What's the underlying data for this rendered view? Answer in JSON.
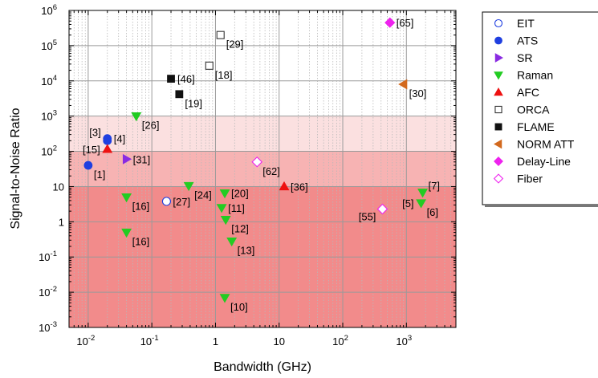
{
  "chart_data": {
    "type": "scatter",
    "xlabel": "Bandwidth (GHz)",
    "ylabel": "Signal-to-Noise Ratio",
    "x_scale": "log",
    "y_scale": "log",
    "xlim": [
      0.005,
      6000
    ],
    "ylim": [
      0.001,
      1000000
    ],
    "x_ticks": [
      {
        "value": 0.01,
        "base": "10",
        "exp": "-2"
      },
      {
        "value": 0.1,
        "base": "10",
        "exp": "-1"
      },
      {
        "value": 1,
        "base": "1",
        "exp": ""
      },
      {
        "value": 10,
        "base": "10",
        "exp": ""
      },
      {
        "value": 100,
        "base": "10",
        "exp": "2"
      },
      {
        "value": 1000,
        "base": "10",
        "exp": "3"
      }
    ],
    "y_ticks": [
      {
        "value": 0.001,
        "base": "10",
        "exp": "-3"
      },
      {
        "value": 0.01,
        "base": "10",
        "exp": "-2"
      },
      {
        "value": 0.1,
        "base": "10",
        "exp": "-1"
      },
      {
        "value": 1,
        "base": "1",
        "exp": ""
      },
      {
        "value": 10,
        "base": "10",
        "exp": ""
      },
      {
        "value": 100,
        "base": "10",
        "exp": "2"
      },
      {
        "value": 1000,
        "base": "10",
        "exp": "3"
      },
      {
        "value": 10000,
        "base": "10",
        "exp": "4"
      },
      {
        "value": 100000,
        "base": "10",
        "exp": "5"
      },
      {
        "value": 1000000,
        "base": "10",
        "exp": "6"
      }
    ],
    "grid": true,
    "legend_position": "right",
    "bands": [
      {
        "y_from": 0.001,
        "y_to": 10,
        "color": "#f28b8b"
      },
      {
        "y_from": 10,
        "y_to": 100,
        "color": "#f7b3b3"
      },
      {
        "y_from": 100,
        "y_to": 1000,
        "color": "#fbe0e0"
      }
    ],
    "series": [
      {
        "name": "EIT",
        "marker": "circle",
        "filled": false,
        "color": "#1f3fe0",
        "points": [
          {
            "x": 0.17,
            "y": 3.8,
            "label": "[27]"
          }
        ]
      },
      {
        "name": "ATS",
        "marker": "circle",
        "filled": true,
        "color": "#1f3fe0",
        "points": [
          {
            "x": 0.01,
            "y": 40,
            "label": "[1]"
          },
          {
            "x": 0.02,
            "y": 200,
            "label": "[3]"
          },
          {
            "x": 0.02,
            "y": 230,
            "label": "[4]"
          }
        ]
      },
      {
        "name": "SR",
        "marker": "triangle-right",
        "filled": true,
        "color": "#8a2be2",
        "points": [
          {
            "x": 0.04,
            "y": 60,
            "label": "[31]"
          }
        ]
      },
      {
        "name": "Raman",
        "marker": "triangle-down",
        "filled": true,
        "color": "#22cc22",
        "points": [
          {
            "x": 0.057,
            "y": 1000,
            "label": "[26]"
          },
          {
            "x": 0.04,
            "y": 5,
            "label": "[16]"
          },
          {
            "x": 0.04,
            "y": 0.5,
            "label": "[16]"
          },
          {
            "x": 0.38,
            "y": 10.5,
            "label": "[24]"
          },
          {
            "x": 1.4,
            "y": 6.5,
            "label": "[20]"
          },
          {
            "x": 1.25,
            "y": 2.5,
            "label": "[11]"
          },
          {
            "x": 1.45,
            "y": 1.15,
            "label": "[12]"
          },
          {
            "x": 1.8,
            "y": 0.28,
            "label": "[13]"
          },
          {
            "x": 1.4,
            "y": 0.007,
            "label": "[10]"
          },
          {
            "x": 1800,
            "y": 6.8,
            "label": "[7]"
          },
          {
            "x": 1700,
            "y": 3.4,
            "label": "[6]"
          }
        ]
      },
      {
        "name": "AFC",
        "marker": "triangle-up",
        "filled": true,
        "color": "#ee1111",
        "points": [
          {
            "x": 0.02,
            "y": 115,
            "label": "[15]"
          },
          {
            "x": 12,
            "y": 10,
            "label": "[36]"
          }
        ]
      },
      {
        "name": "ORCA",
        "marker": "square",
        "filled": false,
        "color": "#333333",
        "points": [
          {
            "x": 1.2,
            "y": 200000,
            "label": "[29]"
          },
          {
            "x": 0.8,
            "y": 27000,
            "label": "[18]"
          }
        ]
      },
      {
        "name": "FLAME",
        "marker": "square",
        "filled": true,
        "color": "#111111",
        "points": [
          {
            "x": 0.2,
            "y": 11500,
            "label": "[46]"
          },
          {
            "x": 0.27,
            "y": 4200,
            "label": "[19]"
          }
        ]
      },
      {
        "name": "NORM ATT",
        "marker": "triangle-left",
        "filled": true,
        "color": "#d2691e",
        "points": [
          {
            "x": 900,
            "y": 8000,
            "label": "[30]"
          }
        ]
      },
      {
        "name": "Delay-Line",
        "marker": "diamond",
        "filled": true,
        "color": "#ee22ee",
        "points": [
          {
            "x": 550,
            "y": 450000,
            "label": "[65]"
          }
        ]
      },
      {
        "name": "Fiber",
        "marker": "diamond",
        "filled": false,
        "color": "#ee22ee",
        "points": [
          {
            "x": 4.5,
            "y": 50,
            "label": "[62]"
          },
          {
            "x": 420,
            "y": 2.3,
            "label": "[55]"
          }
        ]
      }
    ],
    "annotations": [
      {
        "text": "[27]",
        "series": "EIT",
        "index": 0,
        "pos": "right"
      },
      {
        "text": "[1]",
        "series": "ATS",
        "index": 0,
        "pos": "below-right"
      },
      {
        "text": "[3]",
        "series": "ATS",
        "index": 1,
        "pos": "above-left"
      },
      {
        "text": "[4]",
        "series": "ATS",
        "index": 2,
        "pos": "right"
      },
      {
        "text": "[31]",
        "series": "SR",
        "index": 0,
        "pos": "right"
      },
      {
        "text": "[26]",
        "series": "Raman",
        "index": 0,
        "pos": "below-right"
      },
      {
        "text": "[16]",
        "series": "Raman",
        "index": 1,
        "pos": "below-right"
      },
      {
        "text": "[16]",
        "series": "Raman",
        "index": 2,
        "pos": "below-right"
      },
      {
        "text": "[24]",
        "series": "Raman",
        "index": 3,
        "pos": "below-right"
      },
      {
        "text": "[20]",
        "series": "Raman",
        "index": 4,
        "pos": "right"
      },
      {
        "text": "[11]",
        "series": "Raman",
        "index": 5,
        "pos": "right"
      },
      {
        "text": "[12]",
        "series": "Raman",
        "index": 6,
        "pos": "below-right"
      },
      {
        "text": "[13]",
        "series": "Raman",
        "index": 7,
        "pos": "below-right"
      },
      {
        "text": "[10]",
        "series": "Raman",
        "index": 8,
        "pos": "below-right"
      },
      {
        "text": "[7]",
        "series": "Raman",
        "index": 9,
        "pos": "above-right"
      },
      {
        "text": "[6]",
        "series": "Raman",
        "index": 10,
        "pos": "below-right"
      },
      {
        "text": "[5]",
        "series": "Raman",
        "index": 10,
        "pos": "left"
      },
      {
        "text": "[15]",
        "series": "AFC",
        "index": 0,
        "pos": "left"
      },
      {
        "text": "[36]",
        "series": "AFC",
        "index": 1,
        "pos": "right"
      },
      {
        "text": "[29]",
        "series": "ORCA",
        "index": 0,
        "pos": "below-right"
      },
      {
        "text": "[18]",
        "series": "ORCA",
        "index": 1,
        "pos": "below-right"
      },
      {
        "text": "[46]",
        "series": "FLAME",
        "index": 0,
        "pos": "right"
      },
      {
        "text": "[19]",
        "series": "FLAME",
        "index": 1,
        "pos": "below-right"
      },
      {
        "text": "[30]",
        "series": "NORM ATT",
        "index": 0,
        "pos": "below-right"
      },
      {
        "text": "[65]",
        "series": "Delay-Line",
        "index": 0,
        "pos": "right"
      },
      {
        "text": "[62]",
        "series": "Fiber",
        "index": 0,
        "pos": "below-right"
      },
      {
        "text": "[55]",
        "series": "Fiber",
        "index": 1,
        "pos": "below-left"
      }
    ]
  }
}
